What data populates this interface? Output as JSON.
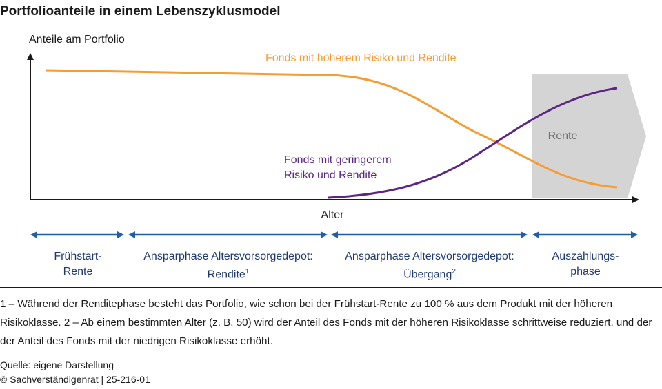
{
  "title": "Portfolioanteile in einem Lebenszyklusmodel",
  "y_axis_label": "Anteile am Portfolio",
  "x_axis_label": "Alter",
  "series": {
    "high_risk": {
      "label": "Fonds mit höherem Risiko und Rendite",
      "color": "#f59c32"
    },
    "low_risk": {
      "line1": "Fonds mit geringerem",
      "line2": "Risiko und Rendite",
      "color": "#5c2483"
    }
  },
  "rente_label": "Rente",
  "phases": [
    {
      "line1": "Frühstart-",
      "line2": "Rente",
      "sup": ""
    },
    {
      "line1": "Ansparphase Altersvorsorgedepot:",
      "line2": "Rendite",
      "sup": "1"
    },
    {
      "line1": "Ansparphase Altersvorsorgedepot:",
      "line2": "Übergang",
      "sup": "2"
    },
    {
      "line1": "Auszahlungs-",
      "line2": "phase",
      "sup": ""
    }
  ],
  "footnote": "1 – Während der Renditephase besteht das Portfolio, wie schon bei der Frühstart-Rente zu 100 % aus dem Produkt mit der höheren Risikoklasse.  2 – Ab einem bestimmten Alter (z. B. 50) wird der Anteil des Fonds mit der höheren Risikoklasse schrittweise reduziert, und der der Anteil des Fonds mit der niedrigen Risikoklasse erhöht.",
  "source": "Quelle: eigene Darstellung",
  "copyright": "© Sachverständigenrat  |  25-216-01",
  "colors": {
    "arrow_blue": "#1f5fa8",
    "rente_band": "#d4d4d4",
    "phase_text": "#1f3a6e"
  }
}
